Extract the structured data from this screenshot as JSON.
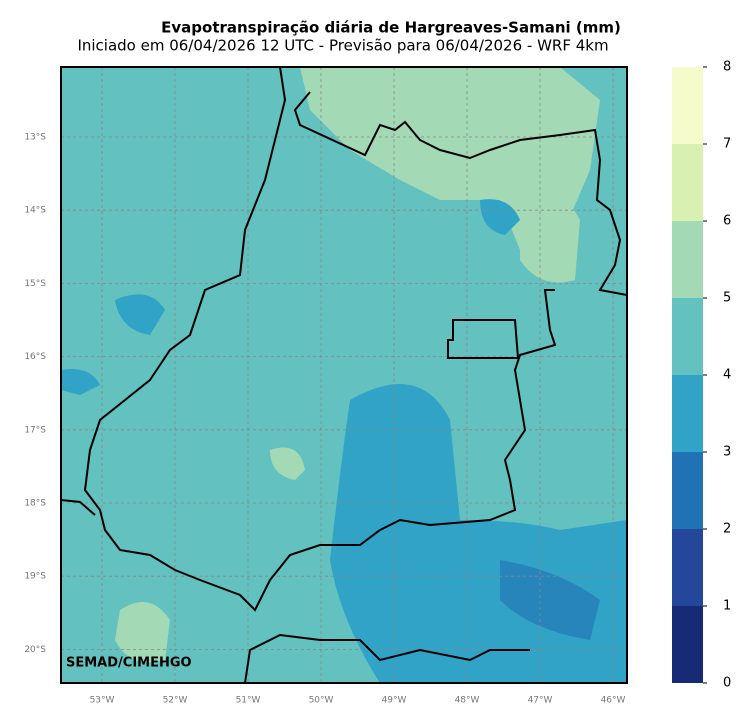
{
  "title": "Evapotranspiração diária de Hargreaves-Samani (mm)",
  "subtitle": "Iniciado em 06/04/2026 12 UTC - Previsão para 06/04/2026 - WRF 4km",
  "credit": "SEMAD/CIMEHGO",
  "lat_labels": [
    "13°S",
    "14°S",
    "15°S",
    "16°S",
    "17°S",
    "18°S",
    "19°S",
    "20°S"
  ],
  "lon_labels": [
    "53°W",
    "52°W",
    "51°W",
    "50°W",
    "49°W",
    "48°W",
    "47°W",
    "46°W"
  ],
  "colorbar": {
    "lim": [
      0,
      8
    ],
    "ticks": [
      0,
      1,
      2,
      3,
      4,
      5,
      6,
      7,
      8
    ],
    "colors": [
      "#172a76",
      "#24479c",
      "#2171b5",
      "#31a3c6",
      "#63c1bf",
      "#a3dab5",
      "#d9f0b3",
      "#f6fbcb"
    ]
  }
}
